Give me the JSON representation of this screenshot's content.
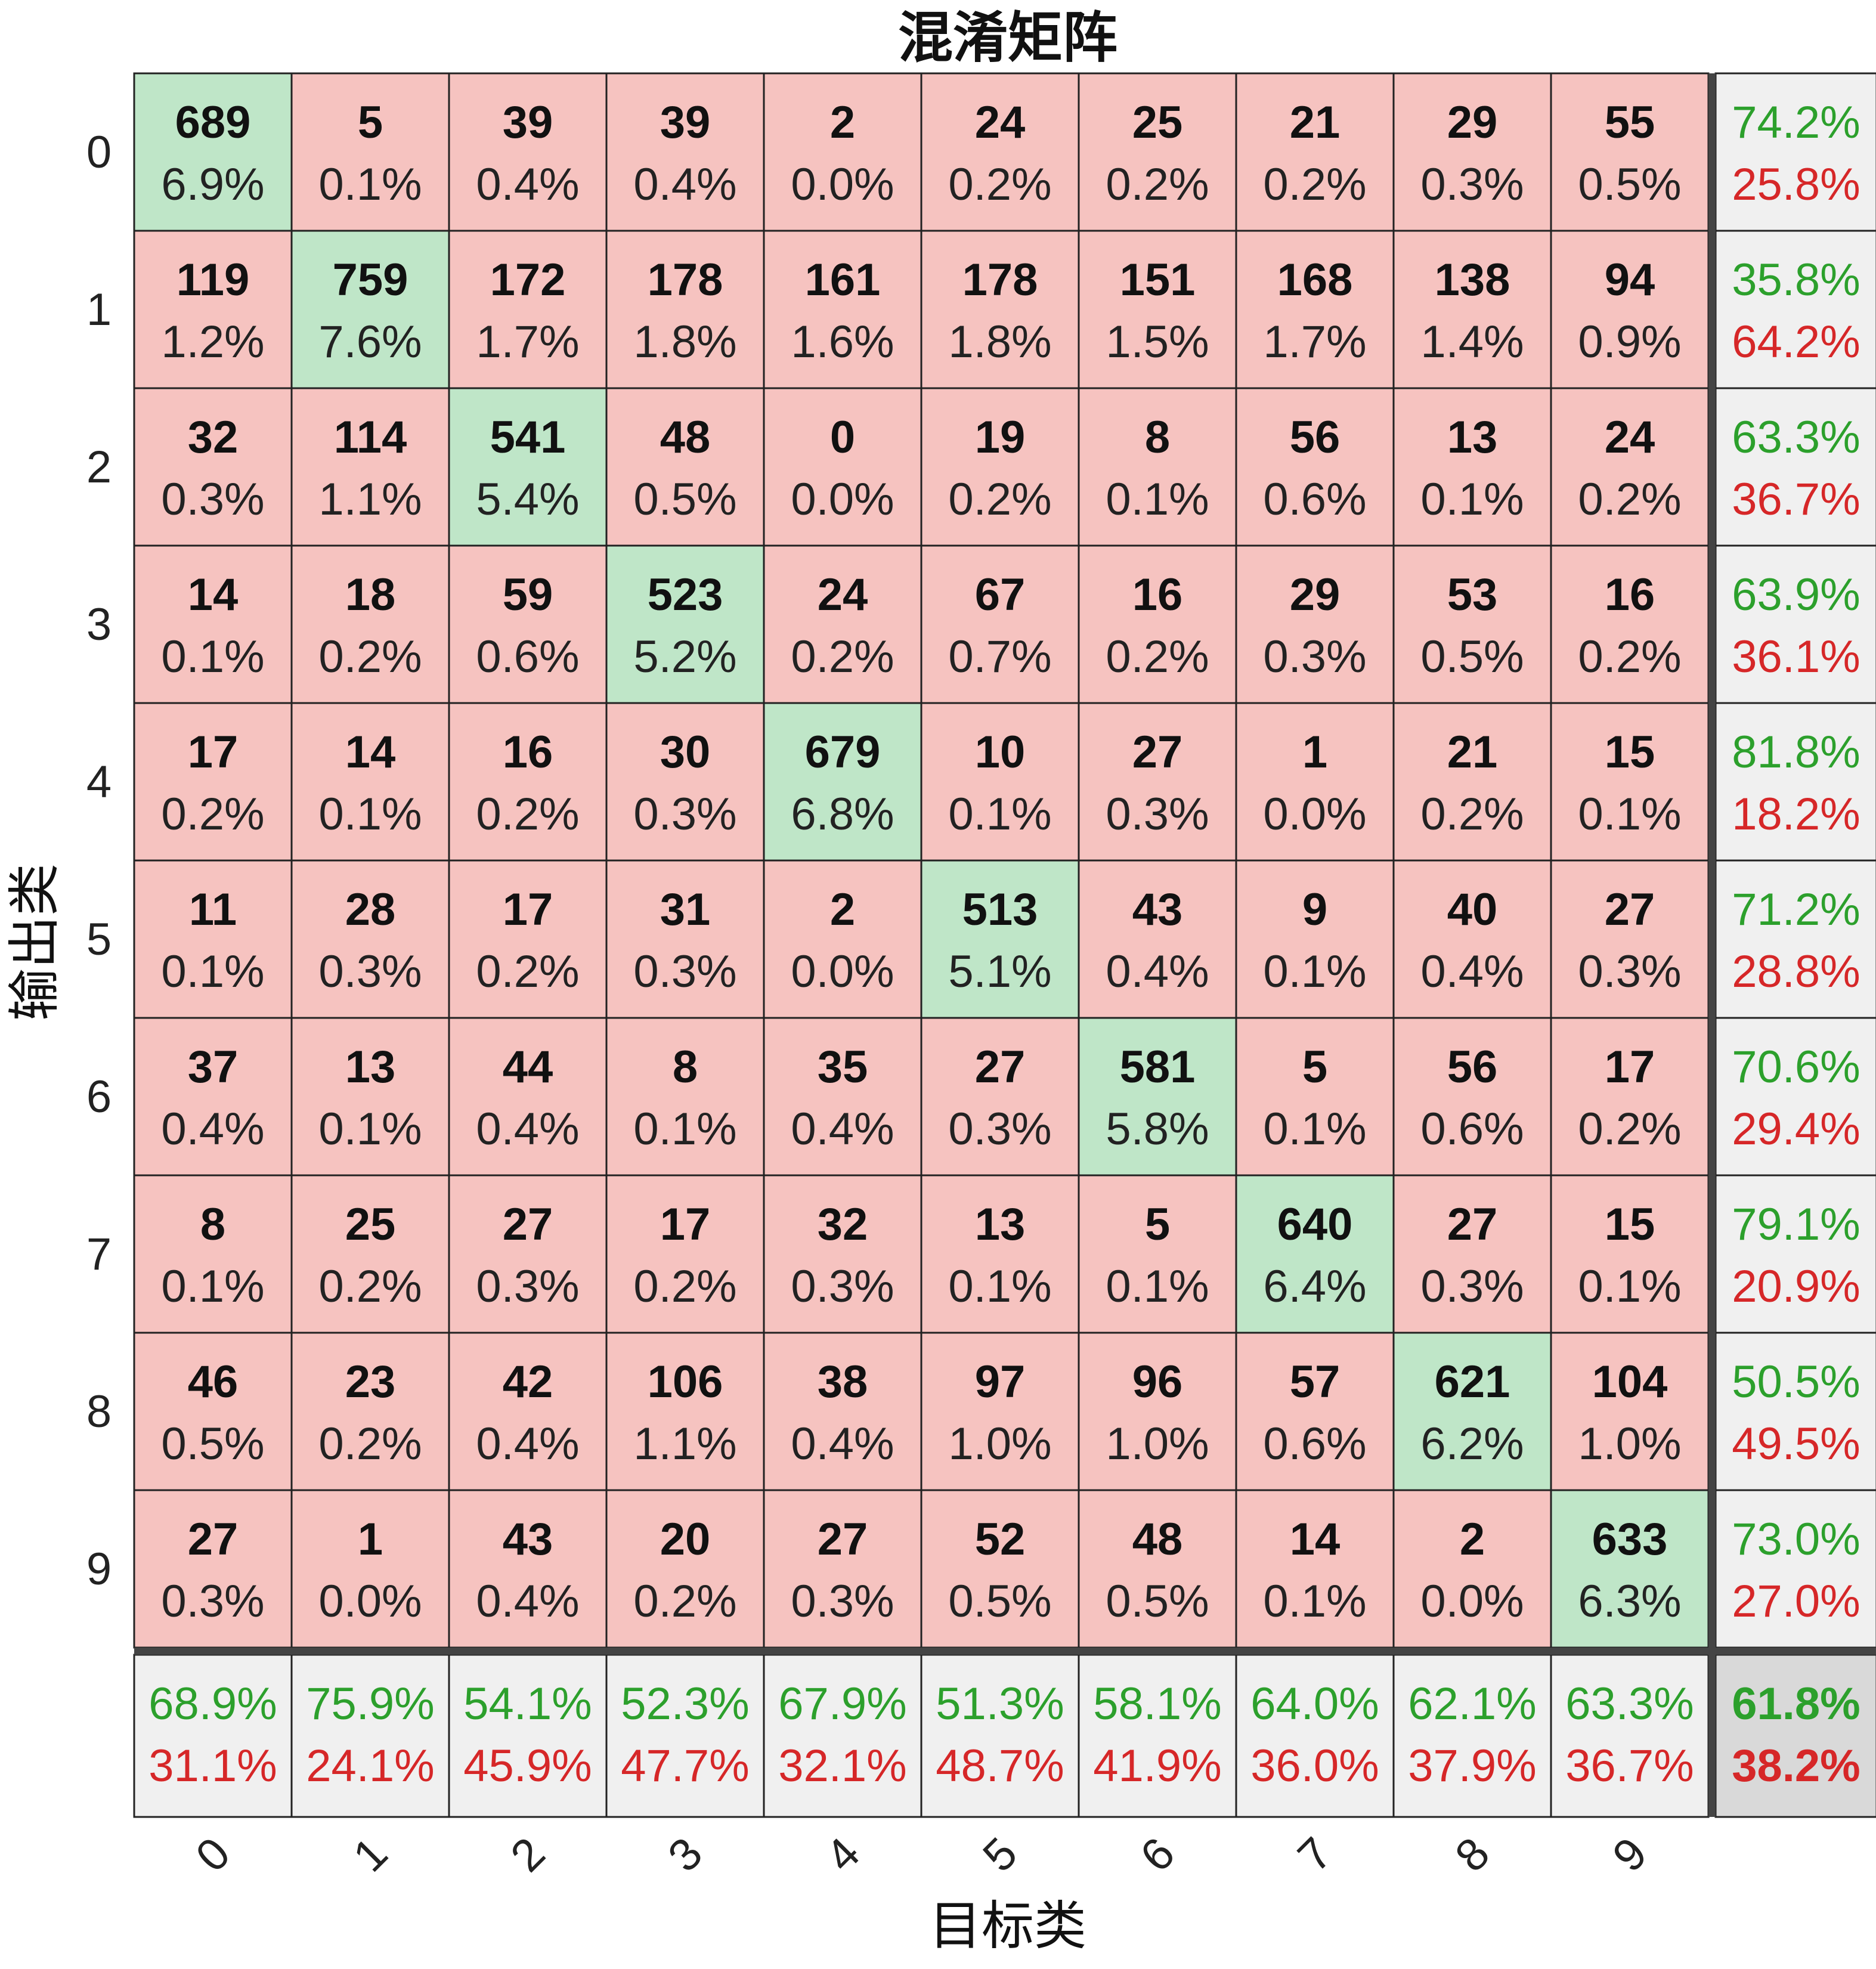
{
  "chart_data": {
    "type": "heatmap",
    "title": "混淆矩阵",
    "xlabel": "目标类",
    "ylabel": "输出类",
    "x_tick_labels": [
      "0",
      "1",
      "2",
      "3",
      "4",
      "5",
      "6",
      "7",
      "8",
      "9"
    ],
    "y_tick_labels": [
      "0",
      "1",
      "2",
      "3",
      "4",
      "5",
      "6",
      "7",
      "8",
      "9"
    ],
    "counts": [
      [
        689,
        5,
        39,
        39,
        2,
        24,
        25,
        21,
        29,
        55
      ],
      [
        119,
        759,
        172,
        178,
        161,
        178,
        151,
        168,
        138,
        94
      ],
      [
        32,
        114,
        541,
        48,
        0,
        19,
        8,
        56,
        13,
        24
      ],
      [
        14,
        18,
        59,
        523,
        24,
        67,
        16,
        29,
        53,
        16
      ],
      [
        17,
        14,
        16,
        30,
        679,
        10,
        27,
        1,
        21,
        15
      ],
      [
        11,
        28,
        17,
        31,
        2,
        513,
        43,
        9,
        40,
        27
      ],
      [
        37,
        13,
        44,
        8,
        35,
        27,
        581,
        5,
        56,
        17
      ],
      [
        8,
        25,
        27,
        17,
        32,
        13,
        5,
        640,
        27,
        15
      ],
      [
        46,
        23,
        42,
        106,
        38,
        97,
        96,
        57,
        621,
        104
      ],
      [
        27,
        1,
        43,
        20,
        27,
        52,
        48,
        14,
        2,
        633
      ]
    ],
    "percentages": [
      [
        "6.9%",
        "0.1%",
        "0.4%",
        "0.4%",
        "0.0%",
        "0.2%",
        "0.2%",
        "0.2%",
        "0.3%",
        "0.5%"
      ],
      [
        "1.2%",
        "7.6%",
        "1.7%",
        "1.8%",
        "1.6%",
        "1.8%",
        "1.5%",
        "1.7%",
        "1.4%",
        "0.9%"
      ],
      [
        "0.3%",
        "1.1%",
        "5.4%",
        "0.5%",
        "0.0%",
        "0.2%",
        "0.1%",
        "0.6%",
        "0.1%",
        "0.2%"
      ],
      [
        "0.1%",
        "0.2%",
        "0.6%",
        "5.2%",
        "0.2%",
        "0.7%",
        "0.2%",
        "0.3%",
        "0.5%",
        "0.2%"
      ],
      [
        "0.2%",
        "0.1%",
        "0.2%",
        "0.3%",
        "6.8%",
        "0.1%",
        "0.3%",
        "0.0%",
        "0.2%",
        "0.1%"
      ],
      [
        "0.1%",
        "0.3%",
        "0.2%",
        "0.3%",
        "0.0%",
        "5.1%",
        "0.4%",
        "0.1%",
        "0.4%",
        "0.3%"
      ],
      [
        "0.4%",
        "0.1%",
        "0.4%",
        "0.1%",
        "0.4%",
        "0.3%",
        "5.8%",
        "0.1%",
        "0.6%",
        "0.2%"
      ],
      [
        "0.1%",
        "0.2%",
        "0.3%",
        "0.2%",
        "0.3%",
        "0.1%",
        "0.1%",
        "6.4%",
        "0.3%",
        "0.1%"
      ],
      [
        "0.5%",
        "0.2%",
        "0.4%",
        "1.1%",
        "0.4%",
        "1.0%",
        "1.0%",
        "0.6%",
        "6.2%",
        "1.0%"
      ],
      [
        "0.3%",
        "0.0%",
        "0.4%",
        "0.2%",
        "0.3%",
        "0.5%",
        "0.5%",
        "0.1%",
        "0.0%",
        "6.3%"
      ]
    ],
    "row_summary": [
      [
        "74.2%",
        "25.8%"
      ],
      [
        "35.8%",
        "64.2%"
      ],
      [
        "63.3%",
        "36.7%"
      ],
      [
        "63.9%",
        "36.1%"
      ],
      [
        "81.8%",
        "18.2%"
      ],
      [
        "71.2%",
        "28.8%"
      ],
      [
        "70.6%",
        "29.4%"
      ],
      [
        "79.1%",
        "20.9%"
      ],
      [
        "50.5%",
        "49.5%"
      ],
      [
        "73.0%",
        "27.0%"
      ]
    ],
    "col_summary": [
      [
        "68.9%",
        "31.1%"
      ],
      [
        "75.9%",
        "24.1%"
      ],
      [
        "54.1%",
        "45.9%"
      ],
      [
        "52.3%",
        "47.7%"
      ],
      [
        "67.9%",
        "32.1%"
      ],
      [
        "51.3%",
        "48.7%"
      ],
      [
        "58.1%",
        "41.9%"
      ],
      [
        "64.0%",
        "36.0%"
      ],
      [
        "62.1%",
        "37.9%"
      ],
      [
        "63.3%",
        "36.7%"
      ]
    ],
    "overall": [
      "61.8%",
      "38.2%"
    ],
    "colors": {
      "diagonal": "#bfe6c8",
      "off_diagonal": "#f6c3c0",
      "summary": "#f0f0f0",
      "overall": "#d9d9d9",
      "good_text": "#2ca02c",
      "bad_text": "#d62728",
      "grid": "#222222"
    }
  }
}
